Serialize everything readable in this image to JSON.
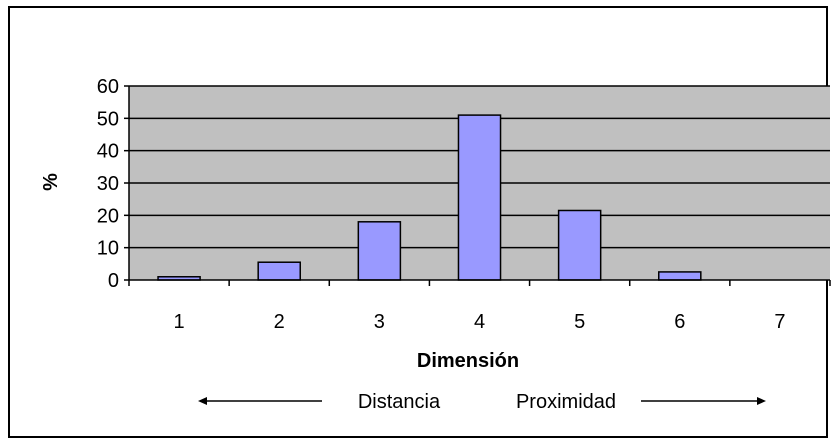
{
  "chart_data": {
    "type": "bar",
    "categories": [
      "1",
      "2",
      "3",
      "4",
      "5",
      "6",
      "7"
    ],
    "values": [
      1,
      5.5,
      18,
      51,
      21.5,
      2.5,
      0
    ],
    "xlabel": "Dimensión",
    "ylabel": "%",
    "ylim": [
      0,
      60
    ],
    "yticks": [
      0,
      10,
      20,
      30,
      40,
      50,
      60
    ],
    "grid": true,
    "legend": "none",
    "annotations": {
      "left": "Distancia",
      "right": "Proximidad"
    }
  },
  "colors": {
    "plot_background": "#c0c0c0",
    "bar_fill": "#9999ff",
    "bar_stroke": "#000000",
    "gridline": "#000000"
  }
}
